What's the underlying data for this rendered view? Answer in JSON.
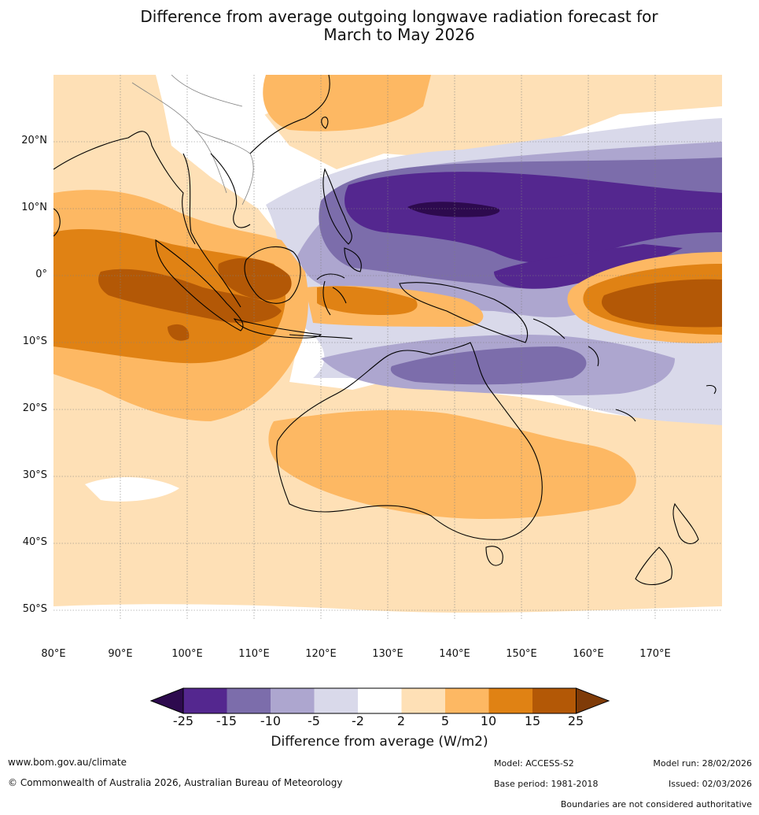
{
  "title": {
    "line1": "Difference from average outgoing longwave radiation forecast for",
    "line2": "March to May 2026"
  },
  "map": {
    "lat_labels": [
      "20°N",
      "10°N",
      "0°",
      "10°S",
      "20°S",
      "30°S",
      "40°S",
      "50°S"
    ],
    "lon_labels": [
      "80°E",
      "90°E",
      "100°E",
      "110°E",
      "120°E",
      "130°E",
      "140°E",
      "150°E",
      "160°E",
      "170°E"
    ],
    "land_outline_color": "#000000",
    "border_color": "#808080"
  },
  "legend": {
    "title": "Difference from average (W/m2)",
    "ticks": [
      "-25",
      "-15",
      "-10",
      "-5",
      "-2",
      "2",
      "5",
      "10",
      "15",
      "25"
    ],
    "colors": {
      "below_min": "#2d0a4e",
      "bin_-25_-15": "#54278f",
      "bin_-15_-10": "#7c6dab",
      "bin_-10_-5": "#ada6cf",
      "bin_-5_-2": "#d9d9ea",
      "bin_-2_2": "#ffffff",
      "bin_2_5": "#fee0b6",
      "bin_5_10": "#fdb863",
      "bin_10_15": "#e08214",
      "bin_15_25": "#b35806",
      "above_max": "#7f3b08"
    }
  },
  "footer": {
    "website": "www.bom.gov.au/climate",
    "copyright": "© Commonwealth of Australia 2026, Australian Bureau of Meteorology",
    "model": "Model: ACCESS-S2",
    "base_period": "Base period: 1981-2018",
    "model_run": "Model run: 28/02/2026",
    "issued": "Issued: 02/03/2026",
    "disclaimer": "Boundaries are not considered authoritative"
  }
}
